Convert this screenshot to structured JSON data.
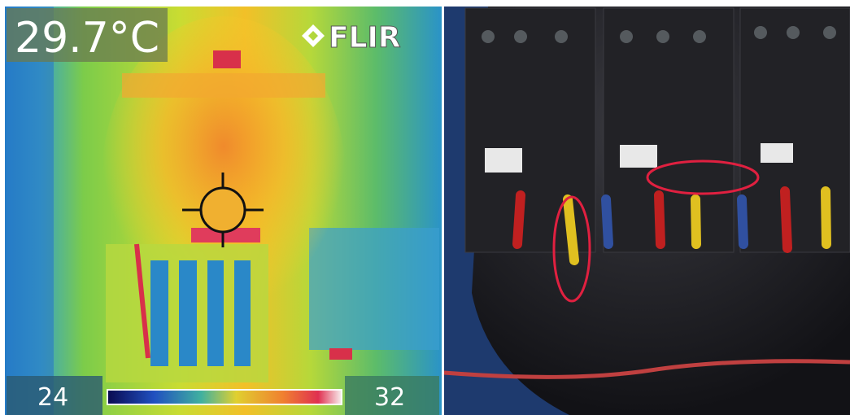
{
  "thermal": {
    "temperature": "29.7°C",
    "brand": "FLIR",
    "scale_min": "24",
    "scale_max": "32"
  }
}
